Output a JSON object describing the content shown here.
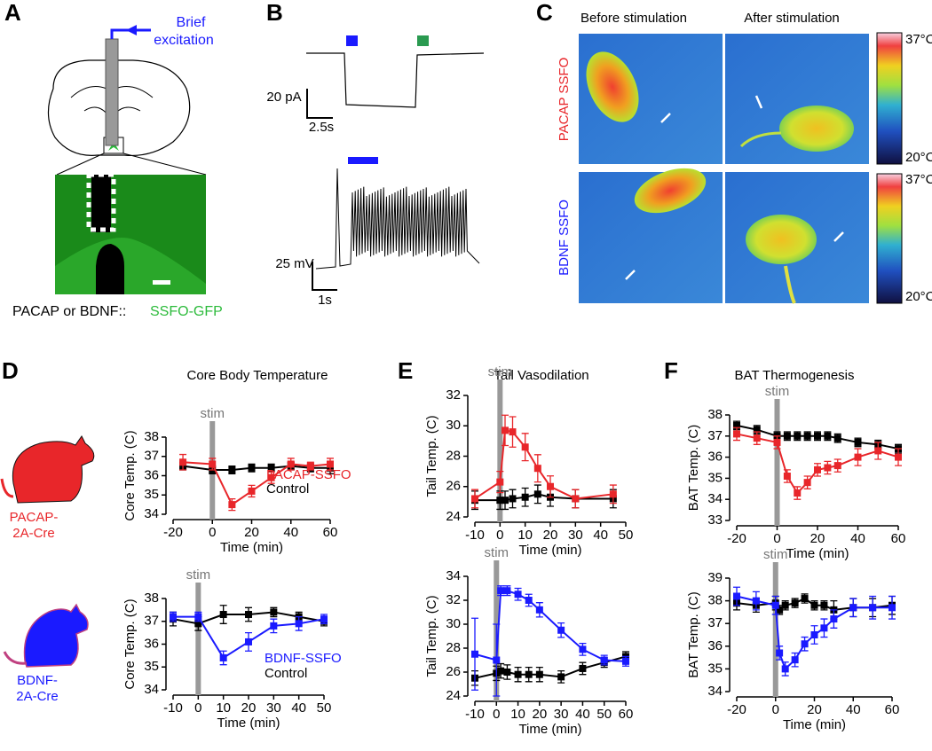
{
  "panel_labels": [
    "A",
    "B",
    "C",
    "D",
    "E",
    "F"
  ],
  "panel_a": {
    "annotation": [
      "Brief",
      "excitation"
    ],
    "caption": "PACAP or BDNF::",
    "caption_highlight": "SSFO-GFP"
  },
  "panel_b": {
    "scale_bars": [
      "20 pA",
      "2.5s",
      "25 mV",
      "1s"
    ]
  },
  "panel_c": {
    "columns": [
      "Before stimulation",
      "After stimulation"
    ],
    "rows": [
      "PACAP SSFO",
      "BDNF SSFO"
    ],
    "colorbars": [
      {
        "max": "37°C",
        "min": "20°C"
      },
      {
        "max": "37°C",
        "min": "20°C"
      }
    ]
  },
  "mouse_labels": [
    [
      "PACAP-",
      "2A-Cre"
    ],
    [
      "BDNF-",
      "2A-Cre"
    ]
  ],
  "chart_data": [
    {
      "type": "line",
      "title": "Core Body Temperature",
      "xlabel": "Time (min)",
      "ylabel": "Core Temp. (C)",
      "annotation": {
        "text": "stim",
        "x": 0
      },
      "x": [
        -15,
        0,
        10,
        20,
        30,
        40,
        50,
        60
      ],
      "xlim": [
        -20,
        60
      ],
      "xticks": [
        -20,
        0,
        20,
        40,
        60
      ],
      "ylim": [
        34,
        38
      ],
      "yticks": [
        34,
        35,
        36,
        37,
        38
      ],
      "series": [
        {
          "name": "Control",
          "color": "#000000",
          "values": [
            36.5,
            36.3,
            36.3,
            36.4,
            36.4,
            36.5,
            36.4,
            36.4
          ],
          "errors": [
            0.2,
            0.2,
            0.2,
            0.2,
            0.2,
            0.2,
            0.2,
            0.3
          ]
        },
        {
          "name": "PACAP-SSFO",
          "color": "#e8262a",
          "values": [
            36.7,
            36.6,
            34.5,
            35.2,
            35.9,
            36.6,
            36.5,
            36.6
          ],
          "errors": [
            0.4,
            0.3,
            0.3,
            0.3,
            0.3,
            0.3,
            0.2,
            0.3
          ]
        }
      ]
    },
    {
      "type": "line",
      "xlabel": "Time (min)",
      "ylabel": "Core Temp. (C)",
      "annotation": {
        "text": "stim",
        "x": 0
      },
      "x": [
        -10,
        0,
        10,
        20,
        30,
        40,
        50
      ],
      "xlim": [
        -10,
        50
      ],
      "xticks": [
        -10,
        0,
        10,
        20,
        30,
        40,
        50
      ],
      "ylim": [
        34,
        38
      ],
      "yticks": [
        34,
        35,
        36,
        37,
        38
      ],
      "series": [
        {
          "name": "Control",
          "color": "#000000",
          "values": [
            37.1,
            36.9,
            37.3,
            37.3,
            37.4,
            37.2,
            37.0
          ],
          "errors": [
            0.3,
            0.3,
            0.4,
            0.3,
            0.2,
            0.2,
            0.2
          ]
        },
        {
          "name": "BDNF-SSFO",
          "color": "#1a1aff",
          "values": [
            37.2,
            37.2,
            35.4,
            36.1,
            36.8,
            36.9,
            37.1
          ],
          "errors": [
            0.2,
            0.2,
            0.3,
            0.4,
            0.3,
            0.3,
            0.2
          ]
        }
      ]
    },
    {
      "type": "line",
      "title": "Tail Vasodilation",
      "xlabel": "Time (min)",
      "ylabel": "Tail Temp. (C)",
      "annotation": {
        "text": "stim",
        "x": 0
      },
      "x": [
        -10,
        0,
        2,
        5,
        10,
        15,
        20,
        30,
        45
      ],
      "xlim": [
        -10,
        50
      ],
      "xticks": [
        -10,
        0,
        10,
        20,
        30,
        40,
        50
      ],
      "ylim": [
        24,
        32
      ],
      "yticks": [
        24,
        26,
        28,
        30,
        32
      ],
      "series": [
        {
          "color": "#000000",
          "values": [
            25.1,
            25.1,
            25.1,
            25.2,
            25.3,
            25.5,
            25.3,
            25.2,
            25.2
          ],
          "errors": [
            0.6,
            0.6,
            0.6,
            0.6,
            0.6,
            0.6,
            0.6,
            0.6,
            0.6
          ]
        },
        {
          "color": "#e8262a",
          "values": [
            25.2,
            26.3,
            29.7,
            29.6,
            28.6,
            27.2,
            26.0,
            25.2,
            25.5
          ],
          "errors": [
            0.6,
            0.7,
            1.0,
            1.0,
            0.9,
            0.9,
            0.7,
            0.6,
            0.6
          ]
        }
      ]
    },
    {
      "type": "line",
      "xlabel": "Time (min)",
      "ylabel": "Tail Temp. (C)",
      "annotation": {
        "text": "stim",
        "x": 0
      },
      "x": [
        -10,
        0,
        2,
        5,
        10,
        15,
        20,
        30,
        40,
        50,
        60
      ],
      "xlim": [
        -10,
        60
      ],
      "xticks": [
        -10,
        0,
        10,
        20,
        30,
        40,
        50,
        60
      ],
      "ylim": [
        24,
        34
      ],
      "yticks": [
        24,
        26,
        28,
        30,
        32,
        34
      ],
      "series": [
        {
          "color": "#000000",
          "values": [
            25.5,
            25.9,
            26.1,
            26.0,
            25.8,
            25.8,
            25.8,
            25.6,
            26.3,
            26.8,
            27.3
          ],
          "errors": [
            0.6,
            0.6,
            0.6,
            0.6,
            0.6,
            0.6,
            0.6,
            0.5,
            0.5,
            0.4,
            0.4
          ]
        },
        {
          "color": "#1a1aff",
          "values": [
            27.5,
            27.0,
            32.8,
            32.8,
            32.5,
            32.0,
            31.2,
            29.5,
            27.9,
            27.0,
            26.9
          ],
          "errors": [
            3.0,
            3.0,
            0.4,
            0.4,
            0.5,
            0.5,
            0.6,
            0.6,
            0.5,
            0.4,
            0.4
          ]
        }
      ]
    },
    {
      "type": "line",
      "title": "BAT Thermogenesis",
      "xlabel": "Time (min)",
      "ylabel": "BAT Temp. (C)",
      "annotation": {
        "text": "stim",
        "x": 0
      },
      "x": [
        -20,
        -10,
        0,
        5,
        10,
        15,
        20,
        25,
        30,
        40,
        50,
        60
      ],
      "xlim": [
        -20,
        60
      ],
      "xticks": [
        -20,
        0,
        20,
        40,
        60
      ],
      "ylim": [
        33,
        38
      ],
      "yticks": [
        33,
        34,
        35,
        36,
        37,
        38
      ],
      "series": [
        {
          "color": "#000000",
          "values": [
            37.5,
            37.3,
            37.0,
            37.0,
            37.0,
            37.0,
            37.0,
            37.0,
            36.9,
            36.7,
            36.6,
            36.4
          ],
          "errors": [
            0.2,
            0.2,
            0.2,
            0.2,
            0.2,
            0.2,
            0.2,
            0.2,
            0.2,
            0.2,
            0.2,
            0.2
          ]
        },
        {
          "color": "#e8262a",
          "values": [
            37.1,
            36.9,
            36.7,
            35.1,
            34.3,
            34.8,
            35.4,
            35.5,
            35.6,
            36.0,
            36.3,
            36.0
          ],
          "errors": [
            0.3,
            0.3,
            0.3,
            0.3,
            0.3,
            0.3,
            0.3,
            0.3,
            0.3,
            0.4,
            0.4,
            0.4
          ]
        }
      ]
    },
    {
      "type": "line",
      "xlabel": "Time (min)",
      "ylabel": "BAT Temp. (C)",
      "annotation": {
        "text": "stim",
        "x": 0
      },
      "x": [
        -20,
        -10,
        0,
        2,
        5,
        10,
        15,
        20,
        25,
        30,
        40,
        50,
        60
      ],
      "xlim": [
        -20,
        60
      ],
      "xticks": [
        -20,
        0,
        20,
        40,
        60
      ],
      "ylim": [
        34,
        39
      ],
      "yticks": [
        34,
        35,
        36,
        37,
        38,
        39
      ],
      "series": [
        {
          "color": "#000000",
          "values": [
            37.9,
            37.8,
            37.9,
            37.6,
            37.8,
            37.9,
            38.1,
            37.8,
            37.8,
            37.6,
            37.7,
            37.7,
            37.8
          ],
          "errors": [
            0.3,
            0.3,
            0.3,
            0.2,
            0.2,
            0.2,
            0.2,
            0.2,
            0.2,
            0.4,
            0.4,
            0.4,
            0.4
          ]
        },
        {
          "color": "#1a1aff",
          "values": [
            38.2,
            38.0,
            37.8,
            35.7,
            35.0,
            35.4,
            36.1,
            36.5,
            36.8,
            37.2,
            37.7,
            37.7,
            37.7
          ],
          "errors": [
            0.4,
            0.4,
            0.4,
            0.3,
            0.3,
            0.3,
            0.3,
            0.4,
            0.4,
            0.4,
            0.4,
            0.5,
            0.5
          ]
        }
      ]
    }
  ]
}
